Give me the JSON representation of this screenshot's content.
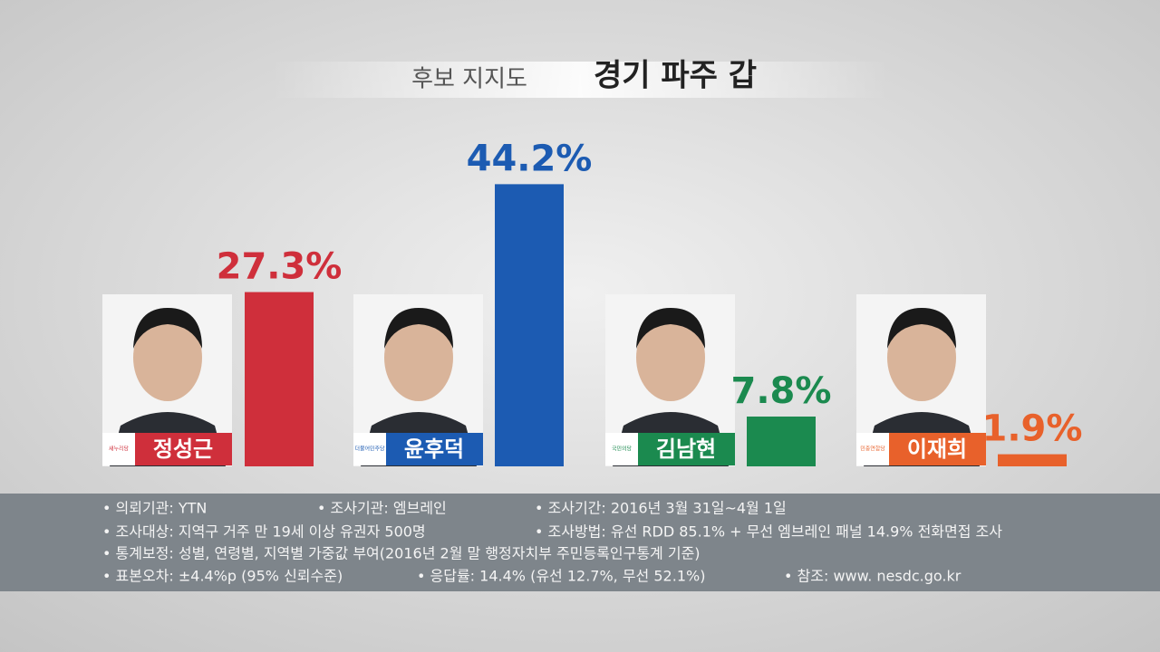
{
  "chart_data": {
    "type": "bar",
    "title": "후보 지지도",
    "subtitle": "경기 파주 갑",
    "categories": [
      "정성근",
      "윤후덕",
      "김남현",
      "이재희"
    ],
    "parties": [
      "새누리당",
      "더불어민주당",
      "국민의당",
      "민중연합당"
    ],
    "values": [
      27.3,
      44.2,
      7.8,
      1.9
    ],
    "value_labels": [
      "27.3%",
      "44.2%",
      "7.8%",
      "1.9%"
    ],
    "colors": [
      "#cf2f3b",
      "#1c5bb2",
      "#1b8a4f",
      "#e8612b"
    ],
    "notes": [
      [
        "• 의뢰기관: YTN",
        "• 조사기관: 엠브레인",
        "• 조사기간: 2016년 3월 31일~4월 1일"
      ],
      [
        "• 조사대상: 지역구 거주 만 19세 이상 유권자 500명",
        "• 조사방법: 유선 RDD 85.1% + 무선 엠브레인 패널 14.9% 전화면접 조사"
      ],
      [
        "• 통계보정: 성별, 연령별, 지역별 가중값 부여(2016년 2월 말 행정자치부 주민등록인구통계 기준)"
      ],
      [
        "• 표본오차: ±4.4%p (95% 신뢰수준)",
        "• 응답률: 14.4% (유선 12.7%, 무선 52.1%)",
        "• 참조: www. nesdc.go.kr"
      ]
    ]
  }
}
